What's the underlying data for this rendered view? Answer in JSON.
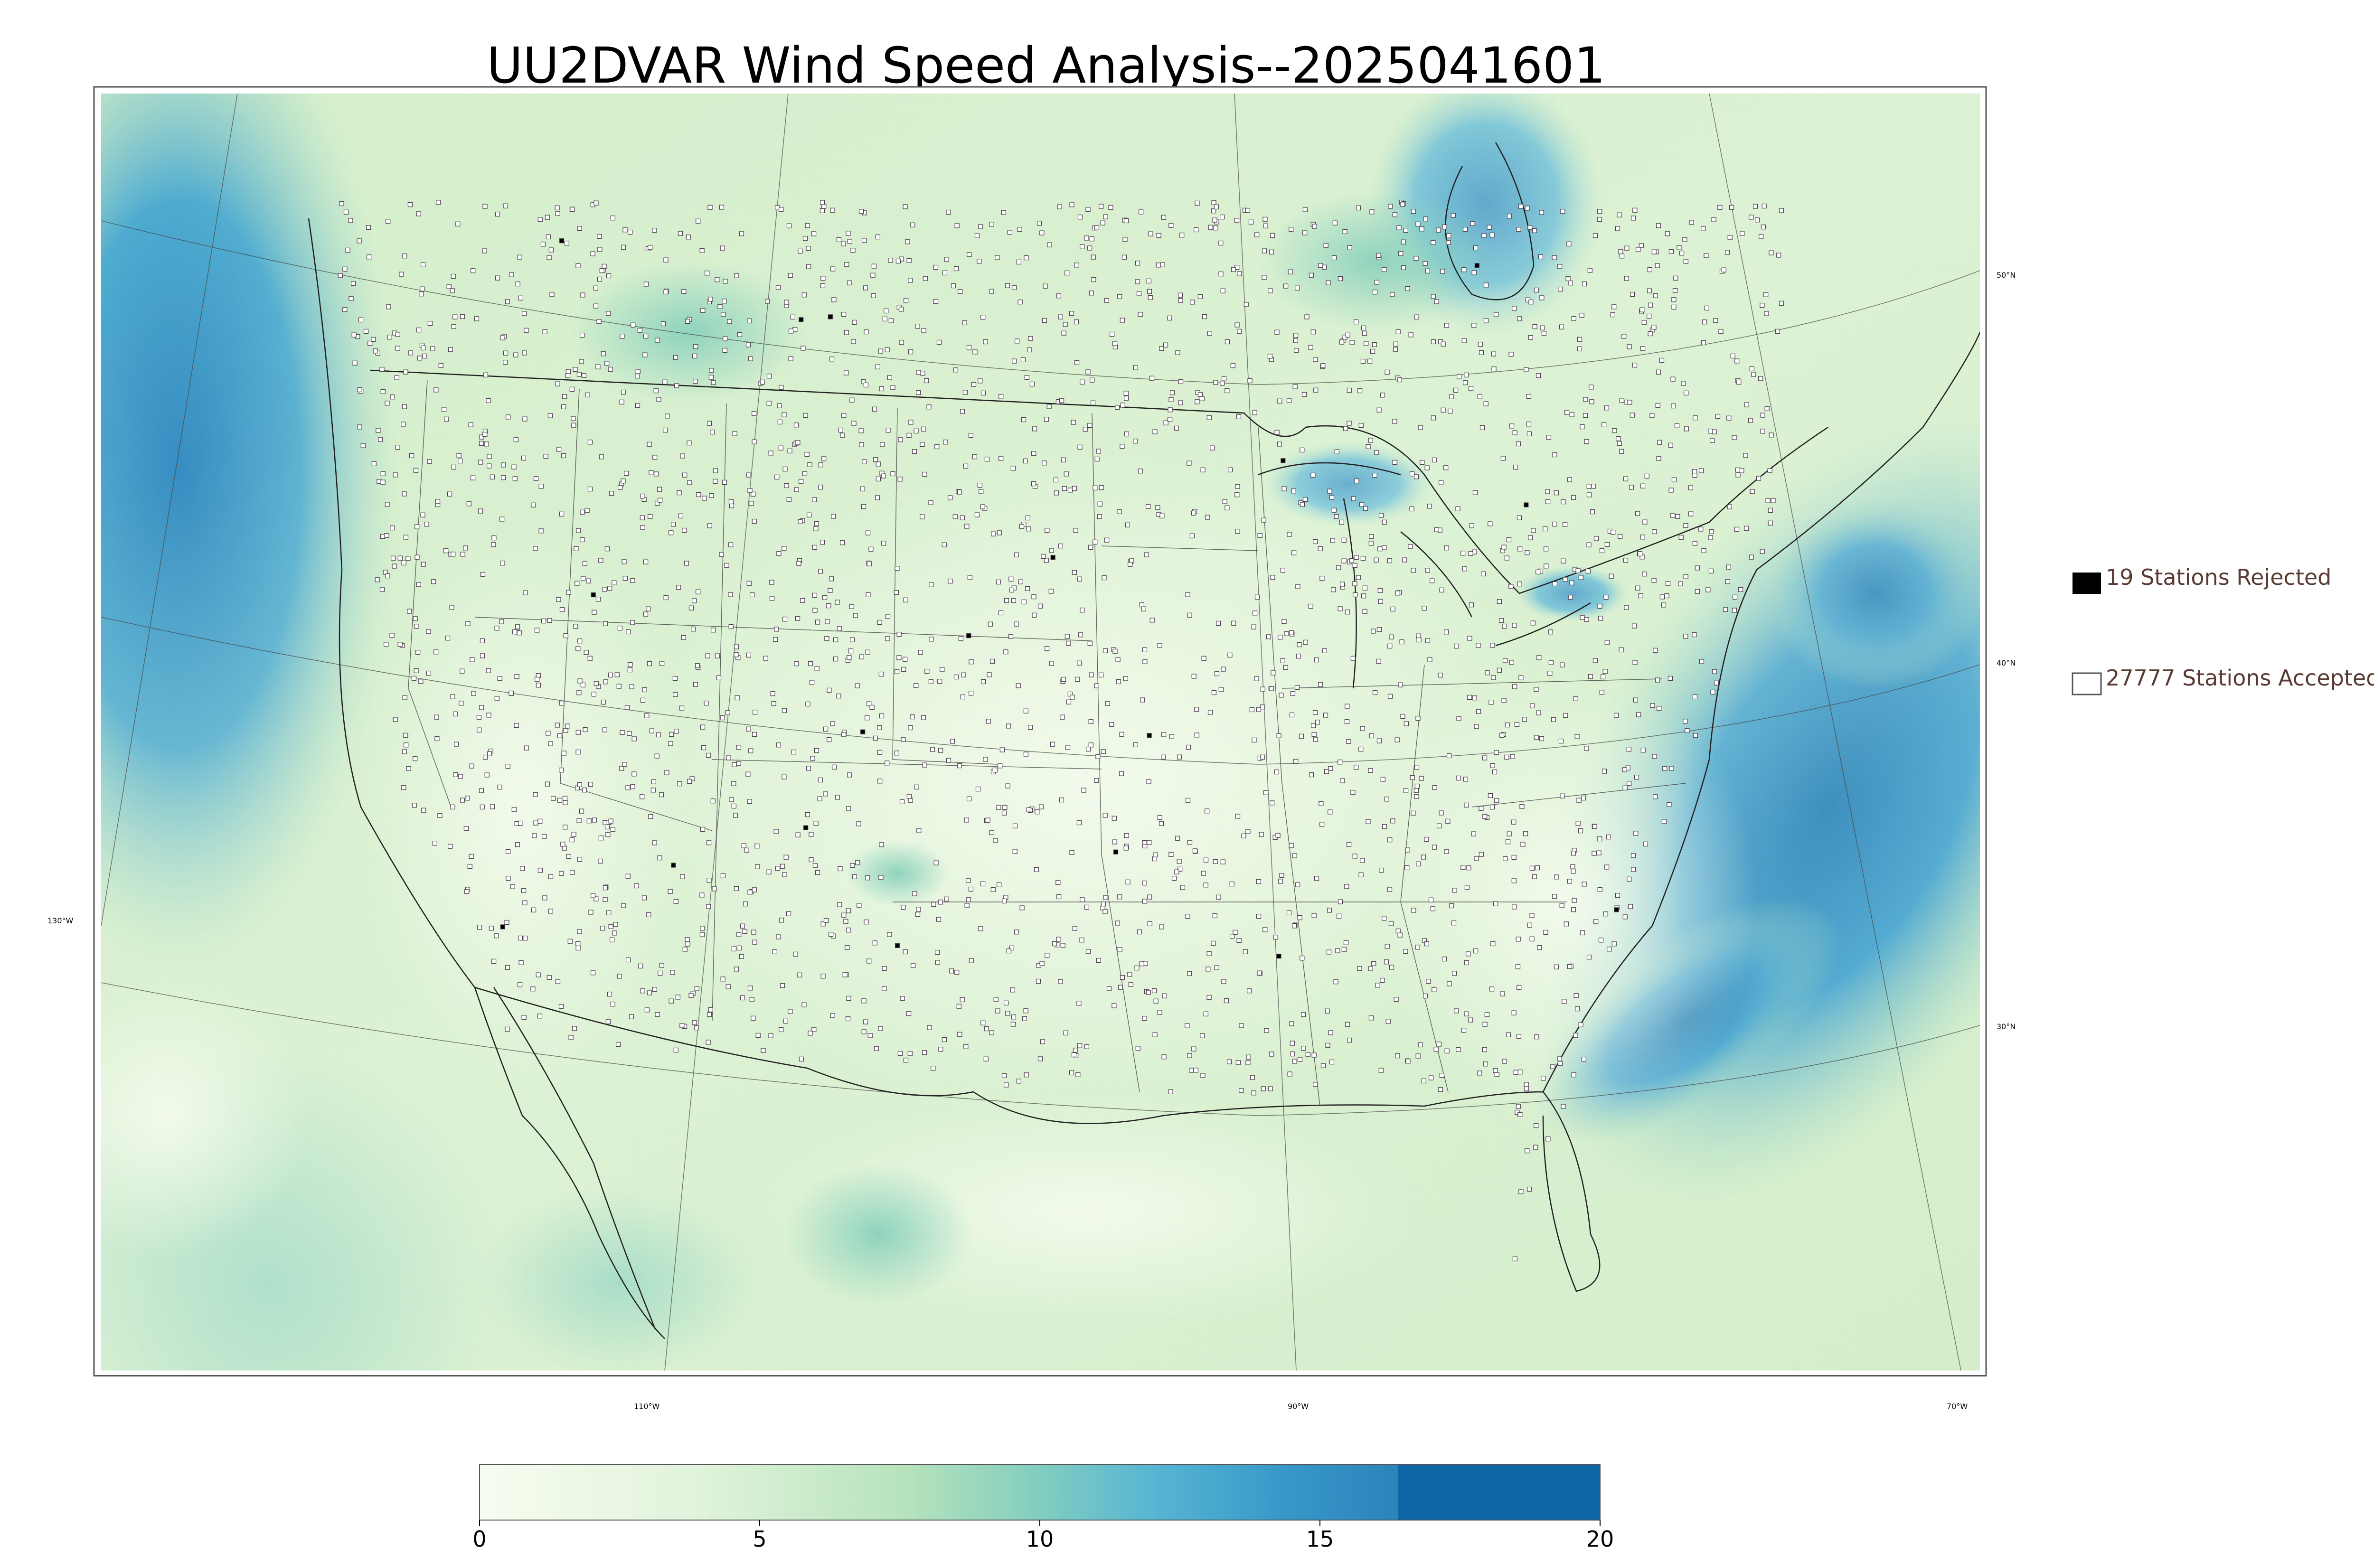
{
  "title": "UU2DVAR Wind Speed Analysis--2025041601",
  "map": {
    "lat_labels": [
      "50°N",
      "40°N",
      "30°N"
    ],
    "lon_labels": [
      "130°W",
      "110°W",
      "90°W",
      "70°W"
    ]
  },
  "legend": {
    "rejected_label": "19 Stations Rejected",
    "accepted_label": "27777 Stations Accepted"
  },
  "colorbar": {
    "ticks": [
      "0",
      "5",
      "10",
      "15",
      "20"
    ],
    "range": [
      0,
      20
    ],
    "colors": [
      "#f7fcf0",
      "#eaf7e4",
      "#ddf2d6",
      "#cbebc5",
      "#b7e3bc",
      "#a0d9b7",
      "#85cdbd",
      "#6bc2c9",
      "#52b3d2",
      "#3da0cb",
      "#2c8cbe",
      "#1f78b4",
      "#0c66a8"
    ]
  },
  "colors": {
    "land_base": "#d9f0d3",
    "ocean_deep": "#2b8cbe",
    "station_edge": "#4a3d4a",
    "rejected_fill": "#000000",
    "legend_text": "#5a3b34"
  }
}
